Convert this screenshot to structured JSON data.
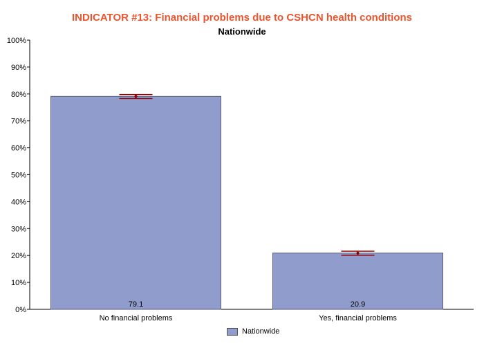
{
  "chart_data": {
    "type": "bar",
    "title": "INDICATOR #13: Financial problems due to CSHCN health conditions",
    "subtitle": "Nationwide",
    "categories": [
      "No financial problems",
      "Yes, financial problems"
    ],
    "series": [
      {
        "name": "Nationwide",
        "values": [
          79.1,
          20.9
        ],
        "color": "#909ccc"
      }
    ],
    "data_labels": [
      "79.1",
      "20.9"
    ],
    "error_bars": [
      {
        "low": 78.3,
        "high": 79.8
      },
      {
        "low": 20.1,
        "high": 21.6
      }
    ],
    "ylim": [
      0,
      100
    ],
    "yticks": [
      0,
      10,
      20,
      30,
      40,
      50,
      60,
      70,
      80,
      90,
      100
    ],
    "ytick_labels": [
      "0%",
      "10%",
      "20%",
      "30%",
      "40%",
      "50%",
      "60%",
      "70%",
      "80%",
      "90%",
      "100%"
    ],
    "legend": "bottom",
    "grid": false,
    "colors": {
      "title": "#e8552f",
      "bar": "#909ccc",
      "bar_border": "#5a5a7a",
      "error": "#8b0000"
    }
  }
}
